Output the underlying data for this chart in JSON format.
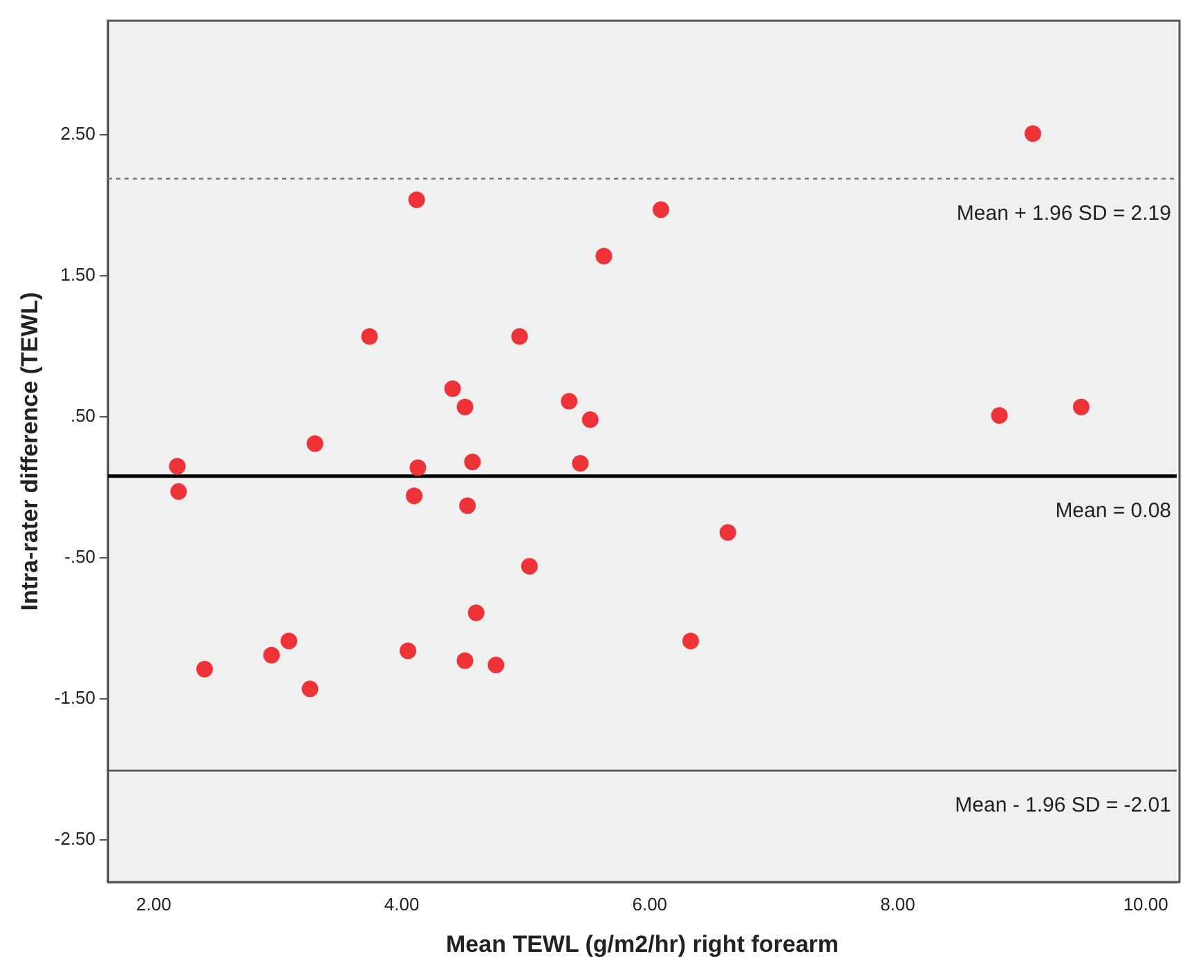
{
  "chart_data": {
    "type": "scatter",
    "xlabel": "Mean TEWL (g/m2/hr) right forearm",
    "ylabel": "Intra-rater difference (TEWL)",
    "xlim": [
      1.63,
      10.25
    ],
    "ylim": [
      -2.8,
      3.31
    ],
    "xticks": [
      {
        "value": 2,
        "label": "2.00"
      },
      {
        "value": 4,
        "label": "4.00"
      },
      {
        "value": 6,
        "label": "6.00"
      },
      {
        "value": 8,
        "label": "8.00"
      },
      {
        "value": 10,
        "label": "10.00"
      }
    ],
    "yticks": [
      {
        "value": -2.5,
        "label": "-2.50"
      },
      {
        "value": -1.5,
        "label": "-1.50"
      },
      {
        "value": -0.5,
        "label": "-.50"
      },
      {
        "value": 0.5,
        "label": ".50"
      },
      {
        "value": 1.5,
        "label": "1.50"
      },
      {
        "value": 2.5,
        "label": "2.50"
      }
    ],
    "grid": false,
    "legend": false,
    "marker": "circle",
    "x": [
      9.09,
      4.12,
      6.09,
      5.63,
      3.74,
      4.95,
      4.41,
      4.51,
      5.35,
      5.52,
      8.82,
      9.48,
      3.3,
      2.19,
      4.13,
      4.57,
      5.44,
      2.2,
      4.1,
      4.53,
      6.63,
      5.03,
      4.6,
      3.09,
      6.33,
      2.95,
      4.05,
      4.51,
      4.76,
      2.41,
      3.26
    ],
    "series": [
      {
        "color": "#ee3338",
        "values": [
          2.51,
          2.04,
          1.97,
          1.64,
          1.07,
          1.07,
          0.7,
          0.57,
          0.61,
          0.48,
          0.51,
          0.57,
          0.31,
          0.15,
          0.14,
          0.18,
          0.17,
          -0.03,
          -0.06,
          -0.13,
          -0.32,
          -0.56,
          -0.89,
          -1.09,
          -1.09,
          -1.19,
          -1.16,
          -1.23,
          -1.26,
          -1.29,
          -1.43
        ]
      }
    ],
    "ref_lines": [
      {
        "axis": "y",
        "value": 2.19,
        "label": "Mean + 1.96 SD = 2.19",
        "color": "#808080",
        "line_style": "dotted"
      },
      {
        "axis": "y",
        "value": 0.08,
        "label": "Mean = 0.08",
        "color": "#000000",
        "line_style": "solid"
      },
      {
        "axis": "y",
        "value": -2.01,
        "label": "Mean - 1.96 SD = -2.01",
        "color": "#555555",
        "line_style": "solid"
      }
    ]
  }
}
